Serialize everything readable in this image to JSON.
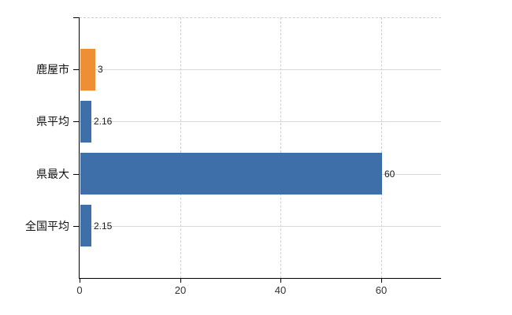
{
  "chart_data": {
    "type": "bar",
    "orientation": "horizontal",
    "categories": [
      "鹿屋市",
      "県平均",
      "県最大",
      "全国平均"
    ],
    "values": [
      3,
      2.16,
      60,
      2.15
    ],
    "value_labels": [
      "3",
      "2.16",
      "60",
      "2.15"
    ],
    "bar_colors": [
      "#ee8f35",
      "#3f6fa8",
      "#3f6fa8",
      "#3f6fa8"
    ],
    "xlim": [
      0,
      72
    ],
    "xticks": [
      0,
      20,
      40,
      60
    ],
    "xtick_labels": [
      "0",
      "20",
      "40",
      "60"
    ],
    "grid": {
      "vertical": "dashed",
      "horizontal": "solid",
      "top_border": "dashed"
    },
    "legend": "none",
    "colors": {
      "bar_orange": "#ee8f35",
      "bar_blue": "#3f6fa8",
      "gridline": "#d6d6d6",
      "axis": "#000000",
      "tick_text": "#333333",
      "label_text": "#111111",
      "background": "#ffffff"
    }
  }
}
